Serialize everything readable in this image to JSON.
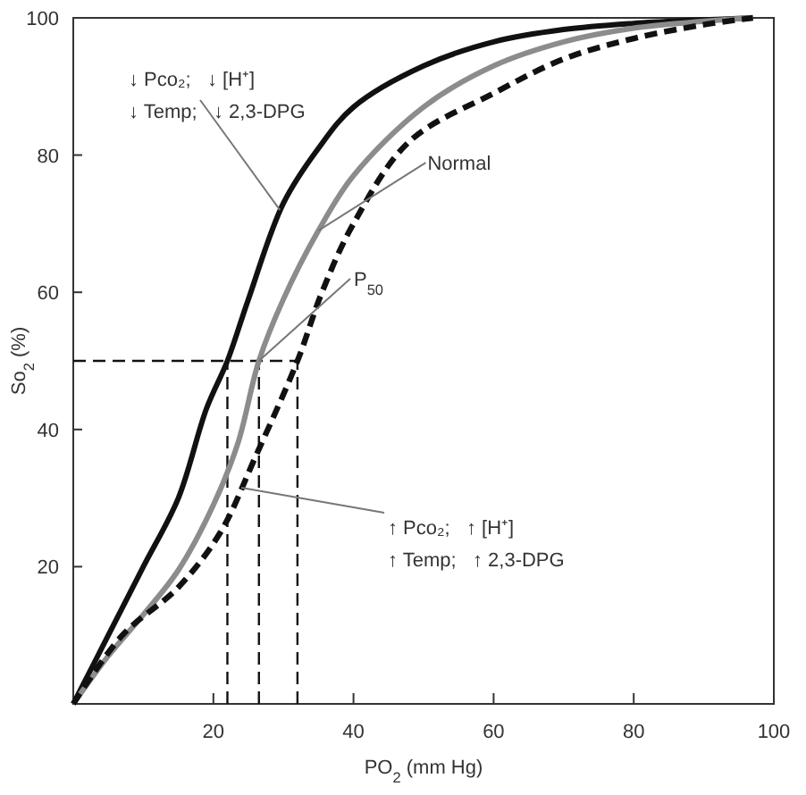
{
  "chart_data": {
    "type": "line",
    "xlabel": "PO$_{2}$ (mm Hg)",
    "ylabel": "So$_{2}$ (%)",
    "xlim": [
      0,
      100
    ],
    "ylim": [
      0,
      100
    ],
    "xticks": [
      20,
      40,
      60,
      80,
      100
    ],
    "yticks": [
      20,
      40,
      60,
      80,
      100
    ],
    "grid": false,
    "series": [
      {
        "color": "#111111",
        "line_style": "solid",
        "x": [
          0,
          5,
          10,
          15,
          19,
          22,
          25,
          30,
          35,
          40,
          50,
          60,
          70,
          80,
          90,
          97
        ],
        "values": [
          0,
          10,
          20,
          30,
          43,
          50,
          59,
          73,
          81,
          87,
          93,
          96.5,
          98.3,
          99.2,
          99.7,
          100
        ]
      },
      {
        "name": "Normal",
        "color": "#8c8c8c",
        "line_style": "solid",
        "x": [
          0,
          5,
          10,
          15,
          20,
          23.5,
          26.5,
          30,
          35,
          40,
          50,
          60,
          70,
          80,
          90,
          97
        ],
        "values": [
          0,
          7,
          13,
          19.5,
          29,
          38,
          50,
          59,
          69,
          77,
          87,
          93,
          96.5,
          98.5,
          99.5,
          100
        ]
      },
      {
        "color": "#111111",
        "line_style": "dashed",
        "x": [
          0,
          7,
          15,
          21,
          26,
          32,
          35.5,
          40,
          48,
          60,
          70,
          80,
          90,
          97
        ],
        "values": [
          0,
          10,
          17,
          25,
          36,
          50,
          60,
          70,
          82,
          89,
          94,
          97,
          99,
          100
        ]
      }
    ],
    "ref_lines": [
      {
        "axis": "y",
        "value": 50,
        "line_style": "dashed"
      },
      {
        "axis": "x",
        "value": 22,
        "line_style": "dashed"
      },
      {
        "axis": "x",
        "value": 26.5,
        "line_style": "dashed"
      },
      {
        "axis": "x",
        "value": 32,
        "line_style": "dashed"
      }
    ],
    "annotations": [
      {
        "text": "↓ Pco₂;   ↓ [H⁺]\n↓ Temp;   ↓ 2,3-DPG",
        "x": 29.5,
        "y": 72
      },
      {
        "text": "P$_{50}$",
        "x": 26.5,
        "y": 50
      },
      {
        "text": "↑ Pco₂;   ↑ [H⁺]\n↑ Temp;   ↑ 2,3-DPG",
        "x": 24,
        "y": 31.5
      }
    ]
  }
}
